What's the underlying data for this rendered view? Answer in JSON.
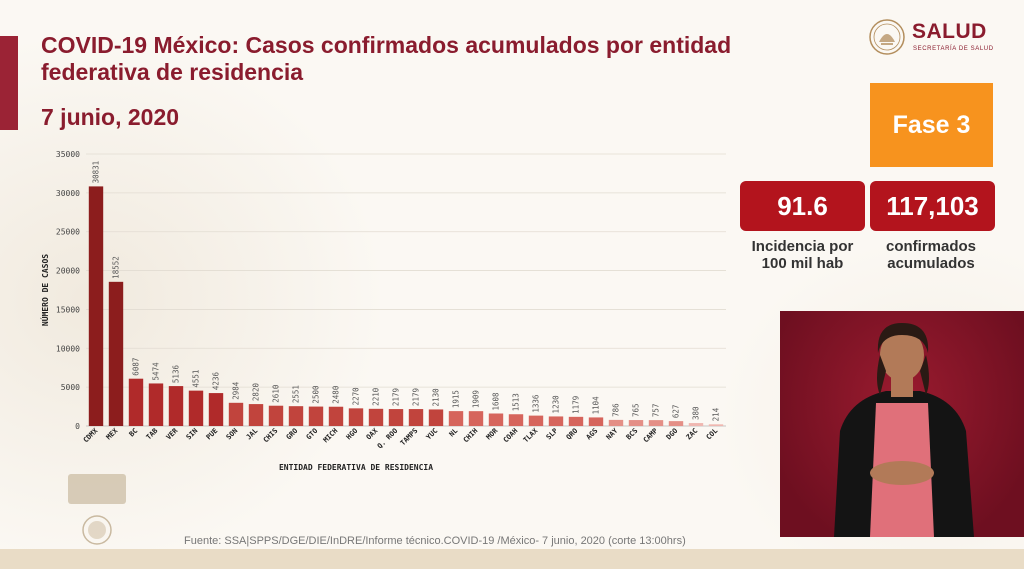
{
  "header": {
    "title": "COVID-19 México: Casos confirmados acumulados por entidad federativa de residencia",
    "date": "7 junio, 2020"
  },
  "logo": {
    "brand": "SALUD",
    "subtitle": "SECRETARÍA DE SALUD"
  },
  "phase": "Fase 3",
  "stats": {
    "incidence_value": "91.6",
    "incidence_label_1": "Incidencia por",
    "incidence_label_2": "100 mil hab",
    "confirmed_value": "117,103",
    "confirmed_label_1": "confirmados",
    "confirmed_label_2": "acumulados"
  },
  "source": "Fuente: SSA|SPPS/DGE/DIE/InDRE/Informe técnico.COVID-19 /México- 7 junio, 2020 (corte 13:00hrs)",
  "colors": {
    "brand_red": "#8a1c2e",
    "phase_orange": "#f7931e",
    "stat_red": "#b3141d"
  },
  "chart_data": {
    "type": "bar",
    "xlabel": "ENTIDAD FEDERATIVA DE RESIDENCIA",
    "ylabel": "NÚMERO DE CASOS",
    "ylim": [
      0,
      35000
    ],
    "yticks": [
      "0",
      "5000",
      "10000",
      "15000",
      "20000",
      "25000",
      "30000",
      "35000"
    ],
    "grid": true,
    "categories": [
      "CDMX",
      "MEX",
      "BC",
      "TAB",
      "VER",
      "SIN",
      "PUE",
      "SON",
      "JAL",
      "CHIS",
      "GRO",
      "GTO",
      "MICH",
      "HGO",
      "OAX",
      "Q. ROO",
      "TAMPS",
      "YUC",
      "NL",
      "CHIH",
      "MOR",
      "COAH",
      "TLAX",
      "SLP",
      "QRO",
      "AGS",
      "NAY",
      "BCS",
      "CAMP",
      "DGO",
      "ZAC",
      "COL"
    ],
    "values": [
      30831,
      18552,
      6087,
      5474,
      5136,
      4551,
      4236,
      2984,
      2820,
      2610,
      2551,
      2500,
      2480,
      2270,
      2210,
      2179,
      2179,
      2130,
      1915,
      1909,
      1608,
      1513,
      1336,
      1230,
      1179,
      1104,
      786,
      765,
      757,
      627,
      380,
      214
    ],
    "value_labels": [
      "30831",
      "18552",
      "6087",
      "5474",
      "5136",
      "4551",
      "4236",
      "2984",
      "2820",
      "2610",
      "2551",
      "2500",
      "2480",
      "2270",
      "2210",
      "2179",
      "2179",
      "2130",
      "1915",
      "1909",
      "1608",
      "1513",
      "1336",
      "1230",
      "1179",
      "1104",
      "786",
      "765",
      "757",
      "627",
      "380",
      "214"
    ],
    "bar_colors": [
      "#8c1d1d",
      "#8c1d1d",
      "#b02a2a",
      "#b02a2a",
      "#b02a2a",
      "#b02a2a",
      "#b02a2a",
      "#c1443d",
      "#c1443d",
      "#c1443d",
      "#c1443d",
      "#c1443d",
      "#c1443d",
      "#c1443d",
      "#c1443d",
      "#c1443d",
      "#c1443d",
      "#c1443d",
      "#d6655c",
      "#d6655c",
      "#d6655c",
      "#d6655c",
      "#d6655c",
      "#d6655c",
      "#d6655c",
      "#d6655c",
      "#e48f86",
      "#e48f86",
      "#e48f86",
      "#e48f86",
      "#efb7b0",
      "#efb7b0"
    ]
  }
}
